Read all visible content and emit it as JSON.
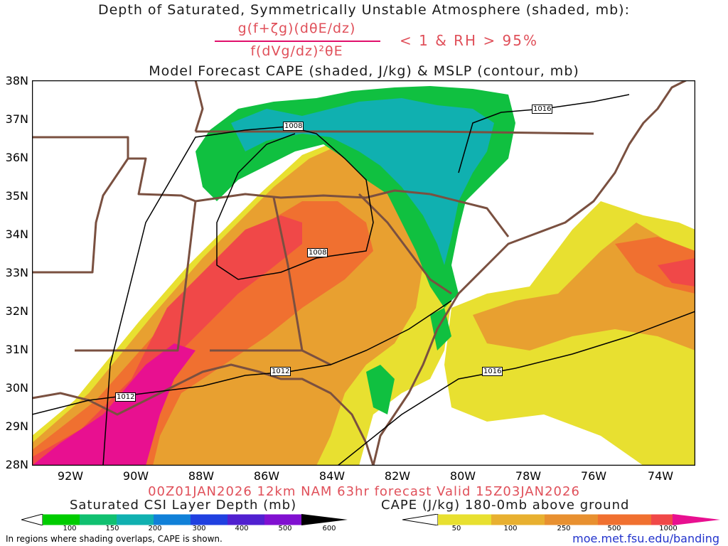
{
  "title_line1": "Depth of Saturated, Symmetrically Unstable Atmosphere (shaded, mb):",
  "formula": {
    "numerator": "g(f+ζg)(dθE/dz)",
    "denominator": "f(dVg/dz)²θE",
    "condition": "< 1 & RH > 95%"
  },
  "title_line2": "Model Forecast CAPE (shaded, J/kg) & MSLP (contour, mb)",
  "lat_labels": [
    "38N",
    "37N",
    "36N",
    "35N",
    "34N",
    "33N",
    "32N",
    "31N",
    "30N",
    "29N",
    "28N"
  ],
  "lon_labels": [
    "92W",
    "90W",
    "88W",
    "86W",
    "84W",
    "82W",
    "80W",
    "78W",
    "76W",
    "74W"
  ],
  "valid_line": "00Z01JAN2026 12km NAM 63hr forecast Valid 15Z03JAN2026",
  "csi_colorbar": {
    "title": "Saturated CSI Layer Depth (mb)",
    "ticks": [
      "100",
      "150",
      "200",
      "300",
      "400",
      "500",
      "600"
    ],
    "colors": [
      "#00cc00",
      "#10c070",
      "#10b0b0",
      "#1080d8",
      "#2040e0",
      "#5020d0",
      "#8010d0",
      "#000000"
    ]
  },
  "cape_colorbar": {
    "title": "CAPE (J/kg) 180-0mb above ground",
    "ticks": [
      "50",
      "100",
      "250",
      "500",
      "1000"
    ],
    "colors": [
      "#e8e030",
      "#e8b030",
      "#e89030",
      "#f07030",
      "#f04848",
      "#e81090"
    ]
  },
  "isobar_labels": [
    "1008",
    "1008",
    "1012",
    "1012",
    "1016",
    "1016"
  ],
  "footer_note": "In regions where shading overlaps, CAPE is shown.",
  "footer_url": "moe.met.fsu.edu/banding",
  "colors": {
    "title_red": "#e0505a",
    "border_brown": "#7a5040",
    "cape_low": "#e8e030",
    "cape_med": "#e8a030",
    "cape_high": "#f04848",
    "cape_max": "#e81090",
    "csi_green": "#10c040",
    "csi_teal": "#10b0b0"
  }
}
